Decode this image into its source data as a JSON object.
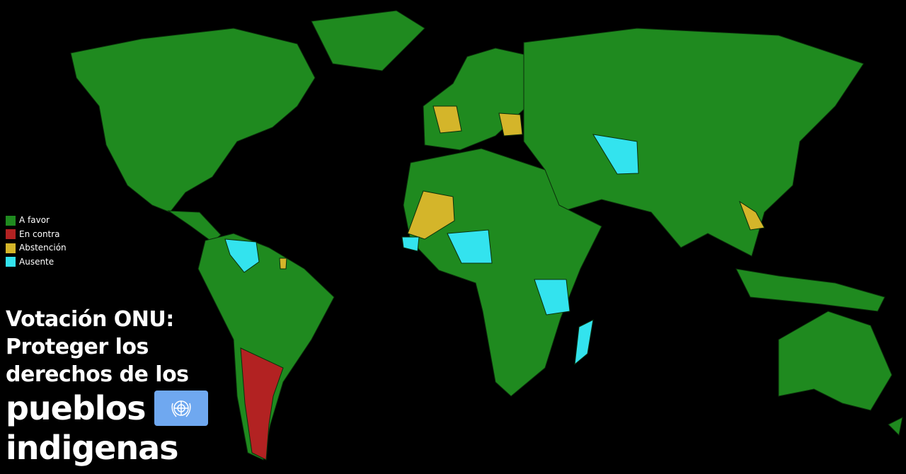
{
  "colors": {
    "a_favor": "#1f8a1f",
    "en_contra": "#b22222",
    "abstencion": "#d4b52a",
    "ausente": "#33e3ee",
    "un_flag": "#6fa8f0"
  },
  "legend": [
    {
      "label": "A favor",
      "color": "#1f8a1f"
    },
    {
      "label": "En contra",
      "color": "#b22222"
    },
    {
      "label": "Abstención",
      "color": "#d4b52a"
    },
    {
      "label": "Ausente",
      "color": "#33e3ee"
    }
  ],
  "title": {
    "line1": "Votación ONU:",
    "line2": "Proteger los",
    "line3": "derechos de los",
    "line4": "pueblos",
    "line5": "indigenas"
  },
  "flag_icon": "un-emblem-icon"
}
